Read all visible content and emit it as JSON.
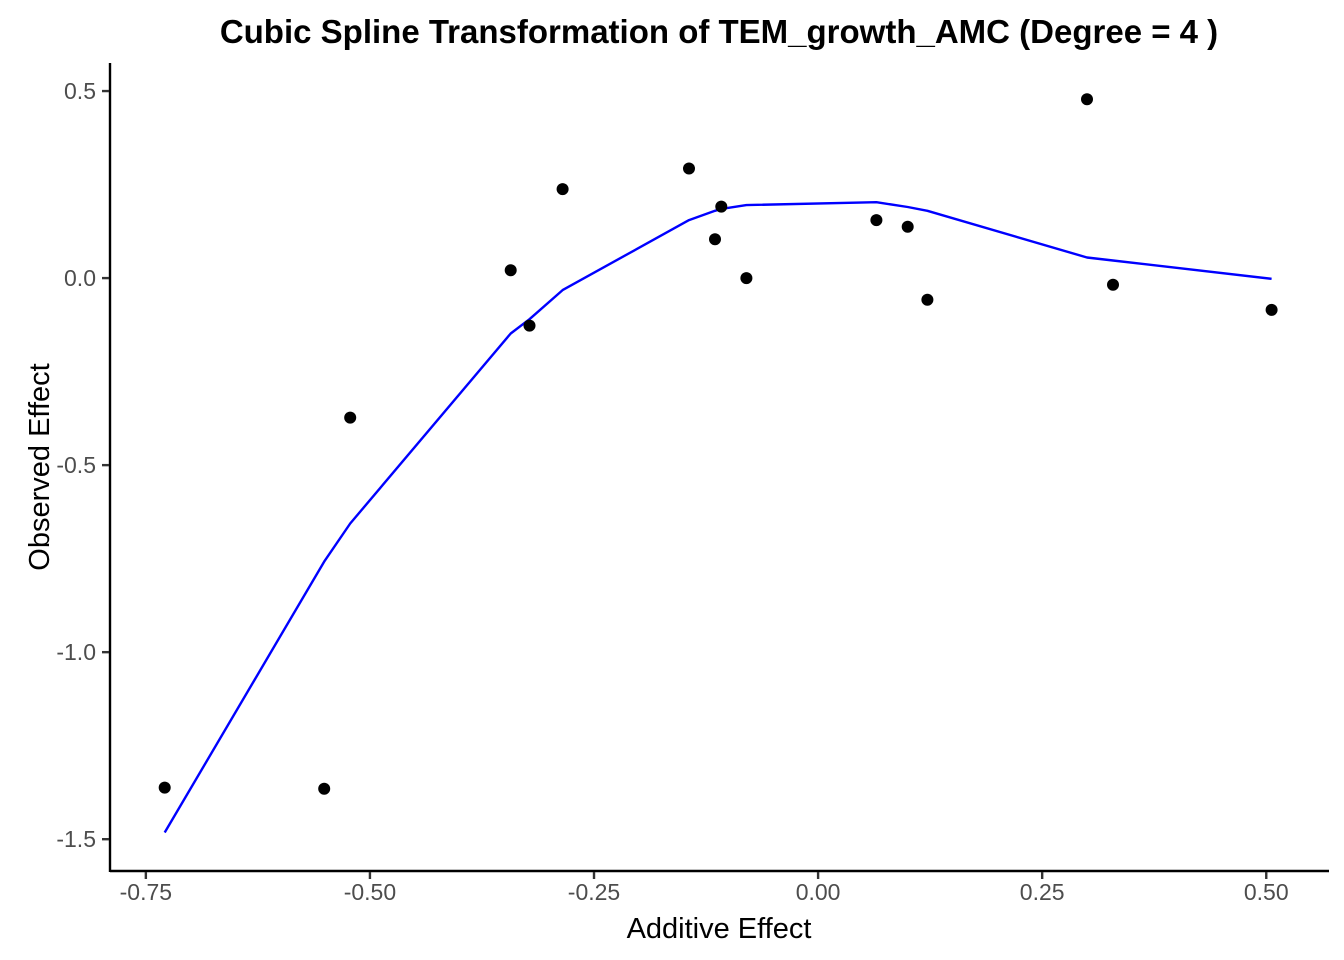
{
  "chart_data": {
    "type": "scatter",
    "title": "Cubic Spline Transformation of TEM_growth_AMC (Degree = 4 )",
    "xlabel": "Additive Effect",
    "ylabel": "Observed Effect",
    "xlim": [
      -0.79,
      0.57
    ],
    "ylim": [
      -1.585,
      0.575
    ],
    "grid": false,
    "legend": "none",
    "x_ticks": [
      {
        "value": -0.75,
        "label": "-0.75"
      },
      {
        "value": -0.5,
        "label": "-0.50"
      },
      {
        "value": -0.25,
        "label": "-0.25"
      },
      {
        "value": 0.0,
        "label": "0.00"
      },
      {
        "value": 0.25,
        "label": "0.25"
      },
      {
        "value": 0.5,
        "label": "0.50"
      }
    ],
    "y_ticks": [
      {
        "value": 0.5,
        "label": "0.5"
      },
      {
        "value": 0.0,
        "label": "0.0"
      },
      {
        "value": -0.5,
        "label": "-0.5"
      },
      {
        "value": -1.0,
        "label": "-1.0"
      },
      {
        "value": -1.5,
        "label": "-1.5"
      }
    ],
    "points": {
      "color": "#000000",
      "x": [
        -0.729,
        -0.551,
        -0.522,
        -0.343,
        -0.322,
        -0.285,
        -0.144,
        -0.115,
        -0.108,
        -0.08,
        0.065,
        0.1,
        0.122,
        0.3,
        0.329,
        0.506
      ],
      "y": [
        -1.362,
        -1.365,
        -0.373,
        0.021,
        -0.127,
        0.238,
        0.293,
        0.104,
        0.191,
        0.0,
        0.155,
        0.137,
        -0.058,
        0.478,
        -0.018,
        -0.085
      ]
    },
    "fit_line": {
      "color": "#0000ff",
      "x": [
        -0.729,
        -0.551,
        -0.522,
        -0.343,
        -0.322,
        -0.285,
        -0.144,
        -0.115,
        -0.108,
        -0.08,
        0.065,
        0.1,
        0.122,
        0.3,
        0.329,
        0.506
      ],
      "y": [
        -1.482,
        -0.758,
        -0.656,
        -0.148,
        -0.11,
        -0.032,
        0.155,
        0.18,
        0.185,
        0.195,
        0.203,
        0.19,
        0.18,
        0.055,
        0.047,
        -0.002
      ]
    }
  }
}
